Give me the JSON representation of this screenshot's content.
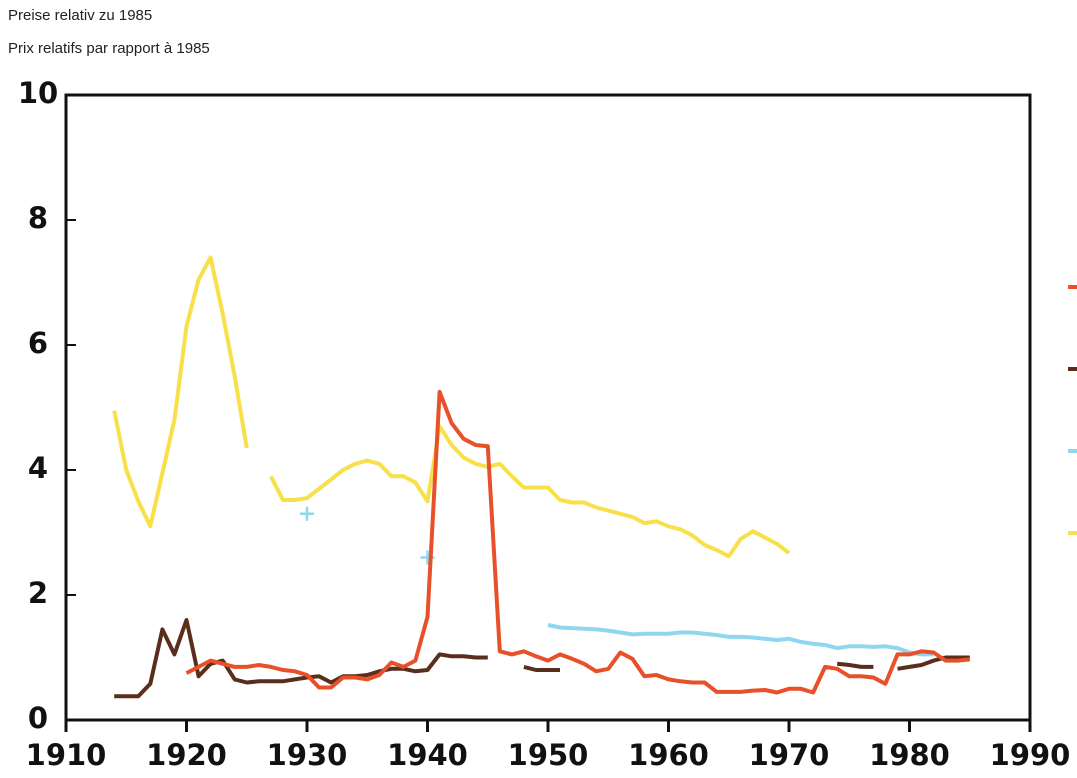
{
  "chart_data": {
    "type": "line",
    "subtitle_de": "Preise relativ zu 1985",
    "subtitle_fr": "Prix relatifs par rapport à 1985",
    "x": [
      1914,
      1915,
      1916,
      1917,
      1918,
      1919,
      1920,
      1921,
      1922,
      1923,
      1924,
      1925,
      1926,
      1927,
      1928,
      1929,
      1930,
      1931,
      1932,
      1933,
      1934,
      1935,
      1936,
      1937,
      1938,
      1939,
      1940,
      1941,
      1942,
      1943,
      1944,
      1945,
      1946,
      1947,
      1948,
      1949,
      1950,
      1951,
      1952,
      1953,
      1954,
      1955,
      1956,
      1957,
      1958,
      1959,
      1960,
      1961,
      1962,
      1963,
      1964,
      1965,
      1966,
      1967,
      1968,
      1969,
      1970,
      1971,
      1972,
      1973,
      1974,
      1975,
      1976,
      1977,
      1978,
      1979,
      1980,
      1981,
      1982,
      1983,
      1984,
      1985
    ],
    "series": [
      {
        "color": "#e8502a",
        "values": [
          null,
          null,
          null,
          null,
          null,
          null,
          0.75,
          0.85,
          0.95,
          0.9,
          0.85,
          0.85,
          0.88,
          0.85,
          0.8,
          0.78,
          0.72,
          0.52,
          0.52,
          0.68,
          0.68,
          0.65,
          0.72,
          0.92,
          0.85,
          0.95,
          1.65,
          5.25,
          4.75,
          4.5,
          4.4,
          4.38,
          1.1,
          1.05,
          1.1,
          1.02,
          0.95,
          1.05,
          0.98,
          0.9,
          0.78,
          0.82,
          1.08,
          0.98,
          0.7,
          0.72,
          0.65,
          0.62,
          0.6,
          0.6,
          0.45,
          0.45,
          0.45,
          0.47,
          0.48,
          0.44,
          0.5,
          0.5,
          0.44,
          0.85,
          0.82,
          0.7,
          0.7,
          0.68,
          0.58,
          1.05,
          1.05,
          1.1,
          1.08,
          0.95,
          0.95,
          0.97
        ]
      },
      {
        "color": "#5a2e1c",
        "values": [
          0.38,
          0.38,
          0.38,
          0.58,
          1.45,
          1.05,
          1.6,
          0.7,
          0.9,
          0.95,
          0.65,
          0.6,
          0.62,
          0.62,
          0.62,
          0.65,
          0.68,
          0.7,
          0.6,
          0.7,
          0.7,
          0.72,
          0.78,
          0.82,
          0.82,
          0.78,
          0.8,
          1.05,
          1.02,
          1.02,
          1.0,
          1.0,
          null,
          null,
          0.85,
          0.8,
          0.8,
          0.8,
          null,
          null,
          null,
          null,
          null,
          null,
          null,
          null,
          null,
          null,
          null,
          null,
          null,
          null,
          null,
          null,
          null,
          null,
          null,
          null,
          null,
          null,
          0.9,
          0.88,
          0.85,
          0.85,
          null,
          0.82,
          0.85,
          0.88,
          0.95,
          1.0,
          1.0,
          1.0
        ]
      },
      {
        "color": "#8fd6ef",
        "values": [
          null,
          null,
          null,
          null,
          null,
          null,
          null,
          null,
          null,
          null,
          null,
          null,
          null,
          null,
          null,
          null,
          3.3,
          null,
          null,
          null,
          null,
          null,
          null,
          null,
          null,
          null,
          2.6,
          null,
          null,
          null,
          null,
          null,
          null,
          null,
          null,
          null,
          1.52,
          1.48,
          1.47,
          1.46,
          1.45,
          1.43,
          1.4,
          1.37,
          1.38,
          1.38,
          1.38,
          1.4,
          1.4,
          1.38,
          1.36,
          1.33,
          1.33,
          1.32,
          1.3,
          1.28,
          1.3,
          1.25,
          1.22,
          1.2,
          1.15,
          1.18,
          1.18,
          1.17,
          1.18,
          1.15,
          1.08,
          1.05,
          1.05,
          null,
          null,
          null
        ]
      },
      {
        "color": "#f7e04a",
        "values": [
          4.95,
          4.0,
          3.5,
          3.1,
          3.95,
          4.8,
          6.3,
          7.05,
          7.4,
          6.5,
          5.5,
          4.35,
          null,
          3.9,
          3.52,
          3.52,
          3.55,
          3.7,
          3.85,
          4.0,
          4.1,
          4.15,
          4.1,
          3.9,
          3.9,
          3.8,
          3.5,
          4.7,
          4.4,
          4.2,
          4.1,
          4.05,
          4.1,
          3.9,
          3.72,
          3.72,
          3.72,
          3.52,
          3.48,
          3.48,
          3.4,
          3.35,
          3.3,
          3.25,
          3.15,
          3.18,
          3.1,
          3.05,
          2.95,
          2.8,
          2.72,
          2.62,
          2.9,
          3.02,
          2.92,
          2.82,
          2.67,
          null,
          null,
          null,
          null,
          null,
          null,
          null,
          null,
          null,
          null,
          null,
          null,
          null,
          null,
          null
        ]
      }
    ],
    "xlim": [
      1910,
      1990
    ],
    "xticks": [
      1910,
      1920,
      1930,
      1940,
      1950,
      1960,
      1970,
      1980,
      1990
    ],
    "ylim": [
      0,
      10
    ],
    "yticks": [
      0,
      2,
      4,
      6,
      8,
      10
    ],
    "grid": false
  }
}
